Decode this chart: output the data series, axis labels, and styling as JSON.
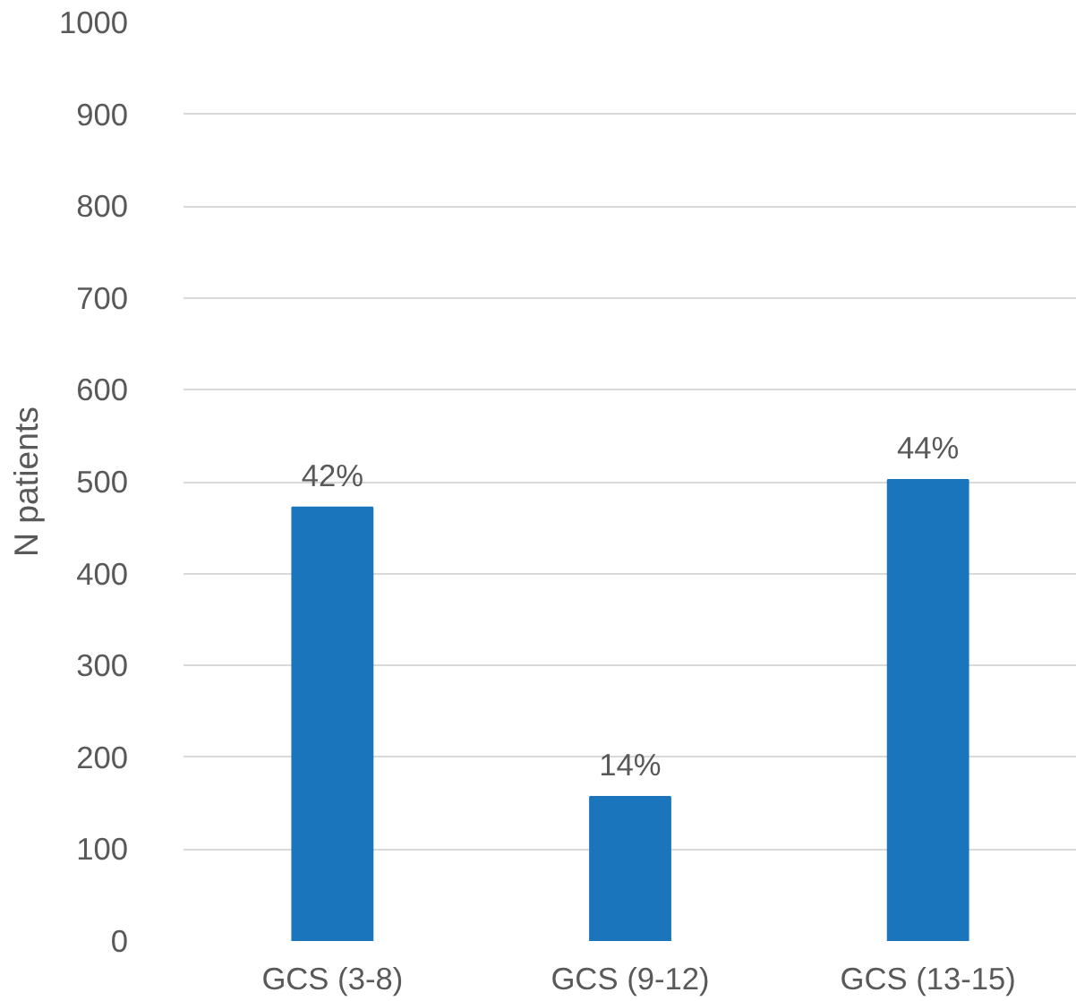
{
  "chart_data": {
    "type": "bar",
    "ylabel": "N patients",
    "categories": [
      "GCS (3-8)",
      "GCS (9-12)",
      "GCS (13-15)"
    ],
    "values": [
      472,
      157,
      502
    ],
    "color": "#1a75bc",
    "annotations": [
      {
        "text": "42%",
        "x": "GCS (3-8)",
        "y": 472
      },
      {
        "text": "14%",
        "x": "GCS (9-12)",
        "y": 157
      },
      {
        "text": "44%",
        "x": "GCS (13-15)",
        "y": 502
      }
    ],
    "ylim": [
      0,
      1000
    ],
    "yticks": [
      0,
      100,
      200,
      300,
      400,
      500,
      600,
      700,
      800,
      900,
      1000
    ],
    "grid": "y"
  }
}
